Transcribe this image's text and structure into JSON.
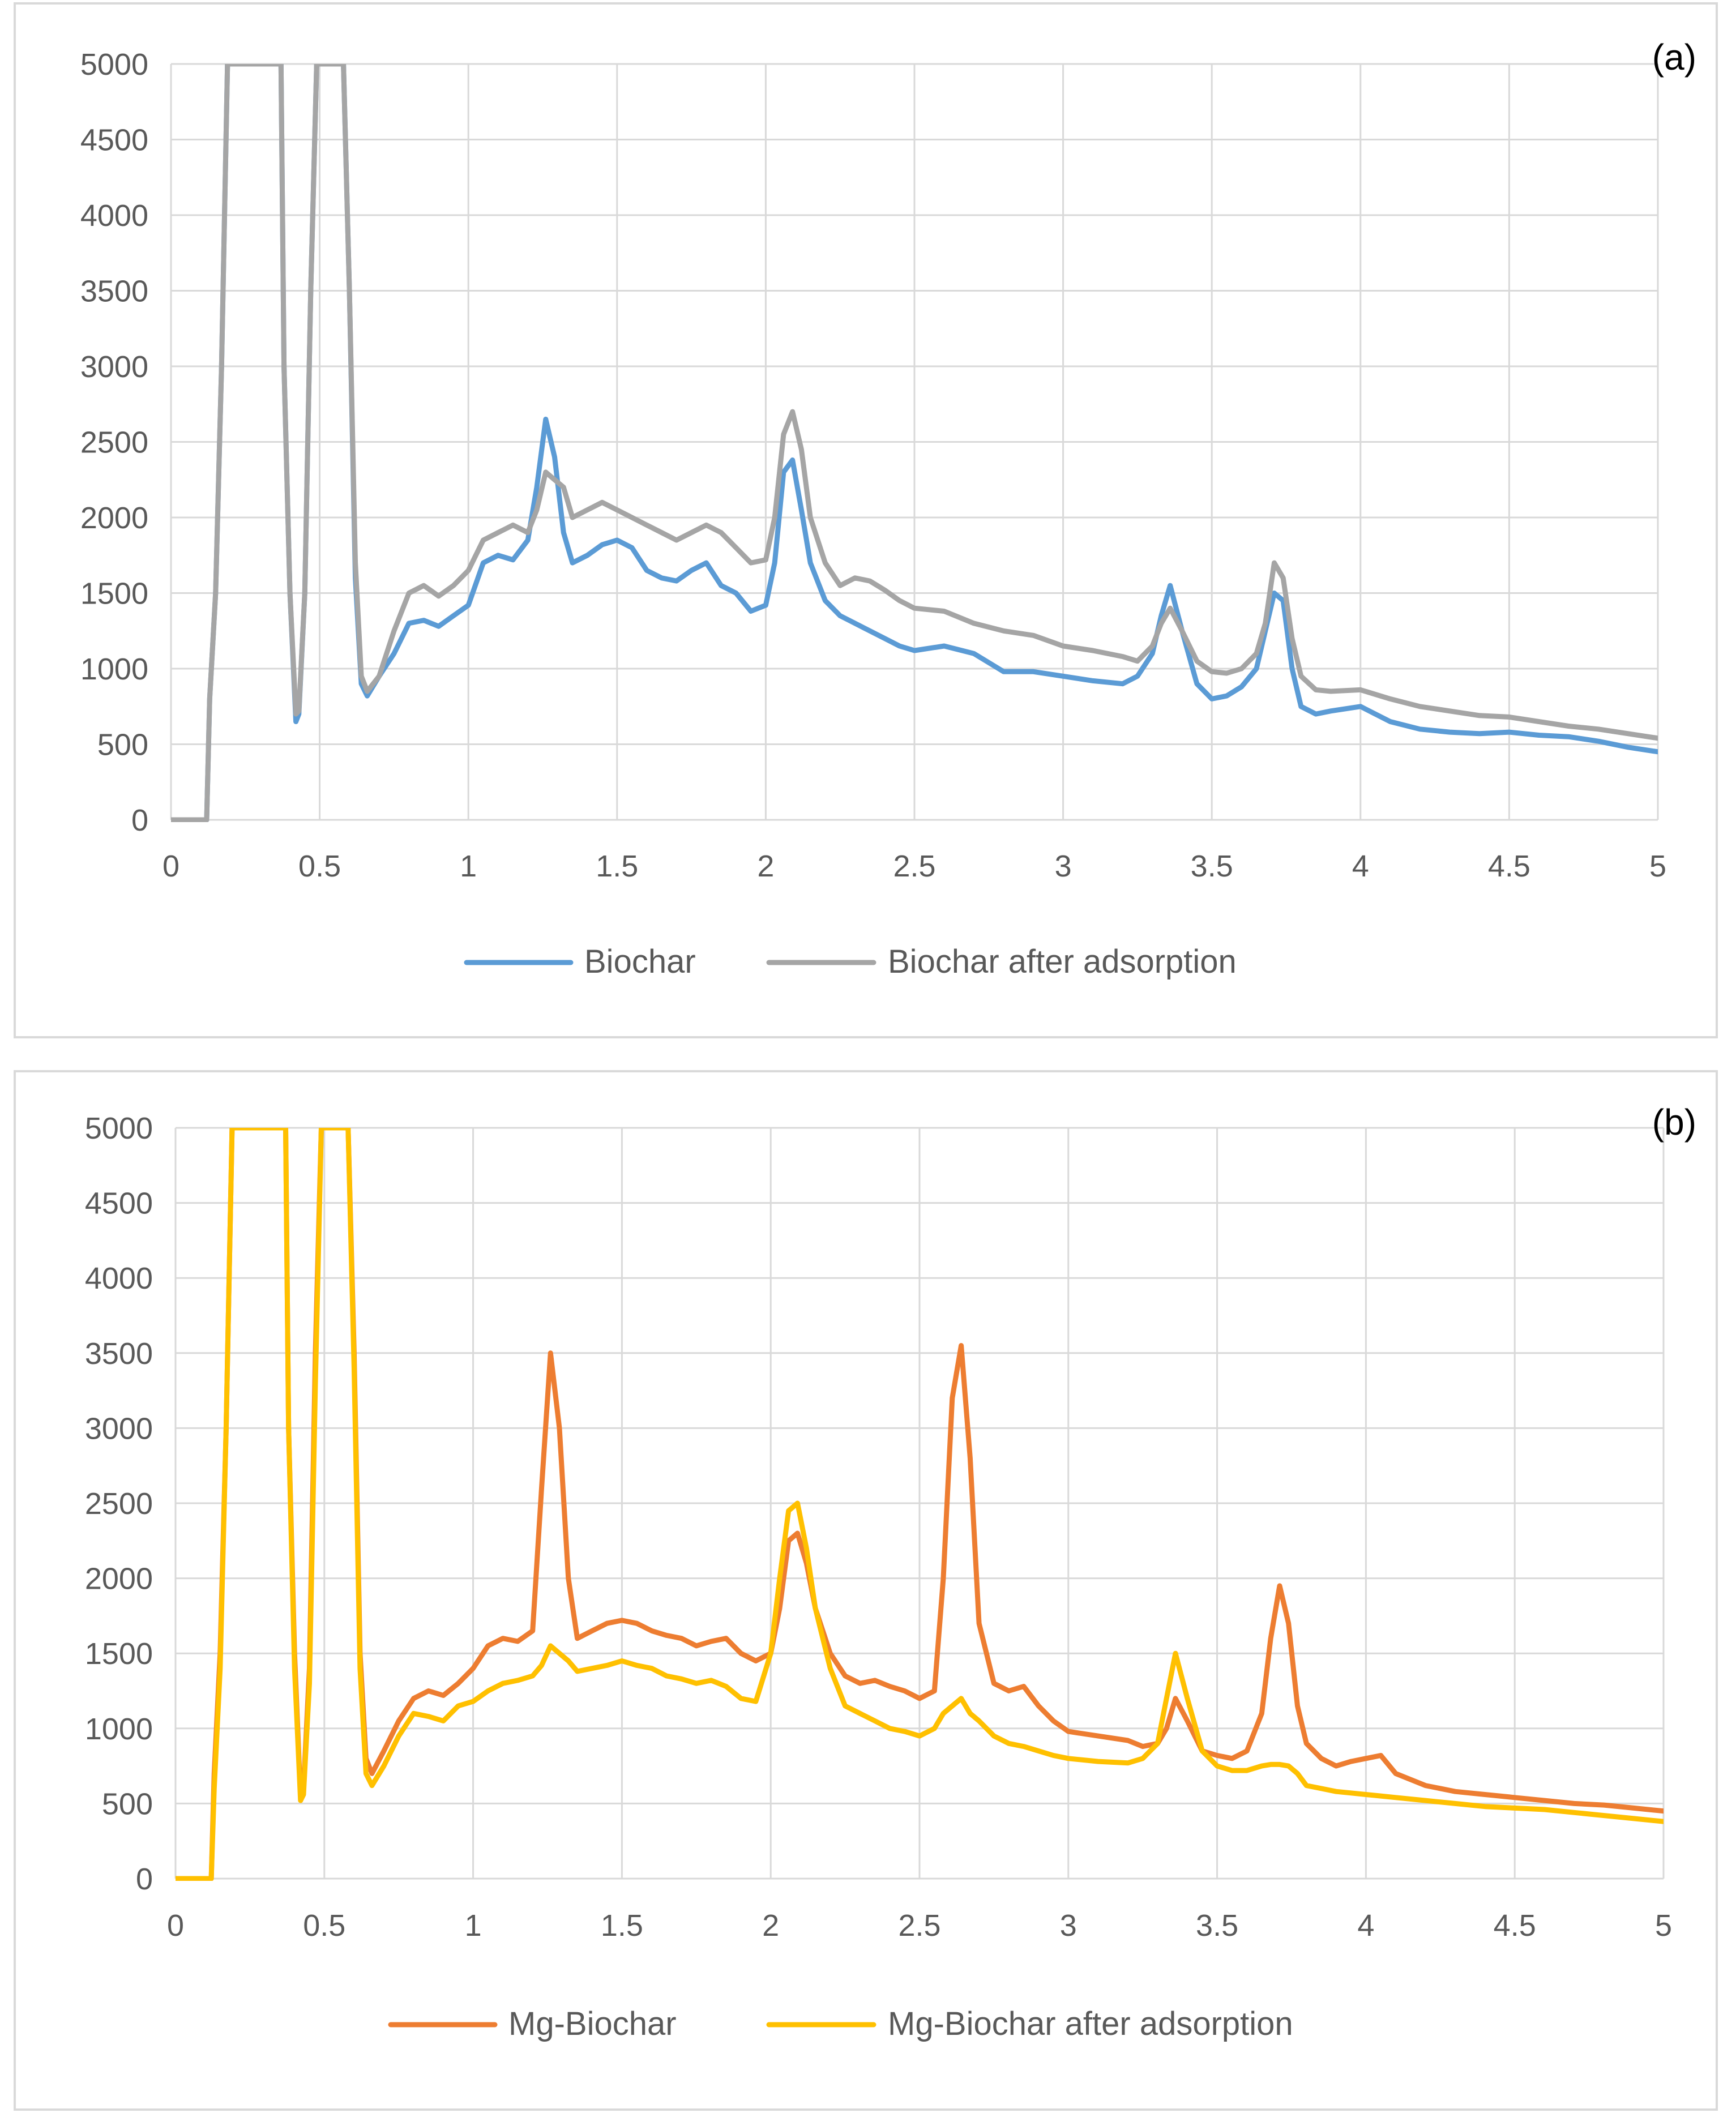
{
  "colors": {
    "biochar": "#5b9bd5",
    "biochar_after": "#a5a5a5",
    "mg_biochar": "#ed7d31",
    "mg_biochar_after": "#ffc000",
    "grid": "#d9d9d9",
    "axis_text": "#595959"
  },
  "chart_data": [
    {
      "type": "line",
      "panel_label": "(a)",
      "title": "",
      "xlabel": "",
      "ylabel": "",
      "xlim": [
        0,
        5
      ],
      "ylim": [
        0,
        5000
      ],
      "xticks": [
        "0",
        "0.5",
        "1",
        "1.5",
        "2",
        "2.5",
        "3",
        "3.5",
        "4",
        "4.5",
        "5"
      ],
      "yticks": [
        "0",
        "500",
        "1000",
        "1500",
        "2000",
        "2500",
        "3000",
        "3500",
        "4000",
        "4500",
        "5000"
      ],
      "grid": true,
      "legend_position": "bottom",
      "x": [
        0,
        0.1,
        0.12,
        0.13,
        0.15,
        0.17,
        0.19,
        0.21,
        0.3,
        0.37,
        0.38,
        0.4,
        0.42,
        0.43,
        0.45,
        0.47,
        0.49,
        0.51,
        0.56,
        0.58,
        0.6,
        0.62,
        0.64,
        0.66,
        0.7,
        0.75,
        0.8,
        0.85,
        0.9,
        0.95,
        1.0,
        1.05,
        1.1,
        1.15,
        1.2,
        1.23,
        1.26,
        1.29,
        1.32,
        1.35,
        1.4,
        1.45,
        1.5,
        1.55,
        1.6,
        1.65,
        1.7,
        1.75,
        1.8,
        1.85,
        1.9,
        1.95,
        2.0,
        2.03,
        2.06,
        2.09,
        2.12,
        2.15,
        2.2,
        2.25,
        2.3,
        2.35,
        2.4,
        2.45,
        2.5,
        2.6,
        2.7,
        2.8,
        2.9,
        3.0,
        3.1,
        3.2,
        3.25,
        3.3,
        3.33,
        3.36,
        3.4,
        3.45,
        3.5,
        3.55,
        3.6,
        3.65,
        3.68,
        3.71,
        3.74,
        3.77,
        3.8,
        3.85,
        3.9,
        4.0,
        4.1,
        4.2,
        4.3,
        4.4,
        4.5,
        4.6,
        4.7,
        4.8,
        4.9,
        5.0
      ],
      "series": [
        {
          "name": "Biochar",
          "color": "#5b9bd5",
          "values": [
            0,
            0,
            0,
            800,
            1500,
            3000,
            5000,
            5000,
            5000,
            5000,
            3000,
            1500,
            650,
            700,
            1500,
            3500,
            5000,
            5000,
            5000,
            5000,
            3500,
            1600,
            900,
            820,
            950,
            1100,
            1300,
            1320,
            1280,
            1350,
            1420,
            1700,
            1750,
            1720,
            1850,
            2200,
            2650,
            2400,
            1900,
            1700,
            1750,
            1820,
            1850,
            1800,
            1650,
            1600,
            1580,
            1650,
            1700,
            1550,
            1500,
            1380,
            1420,
            1700,
            2300,
            2380,
            2050,
            1700,
            1450,
            1350,
            1300,
            1250,
            1200,
            1150,
            1120,
            1150,
            1100,
            980,
            980,
            950,
            920,
            900,
            950,
            1100,
            1350,
            1550,
            1250,
            900,
            800,
            820,
            880,
            1000,
            1250,
            1500,
            1450,
            1000,
            750,
            700,
            720,
            750,
            650,
            600,
            580,
            570,
            580,
            560,
            550,
            520,
            480,
            450
          ]
        },
        {
          "name": "Biochar after adsorption",
          "color": "#a5a5a5",
          "values": [
            0,
            0,
            0,
            800,
            1500,
            3000,
            5000,
            5000,
            5000,
            5000,
            3000,
            1500,
            700,
            720,
            1500,
            3500,
            5000,
            5000,
            5000,
            5000,
            3500,
            1700,
            950,
            850,
            950,
            1250,
            1500,
            1550,
            1480,
            1550,
            1650,
            1850,
            1900,
            1950,
            1900,
            2050,
            2300,
            2250,
            2200,
            2000,
            2050,
            2100,
            2050,
            2000,
            1950,
            1900,
            1850,
            1900,
            1950,
            1900,
            1800,
            1700,
            1720,
            2000,
            2550,
            2700,
            2450,
            2000,
            1700,
            1550,
            1600,
            1580,
            1520,
            1450,
            1400,
            1380,
            1300,
            1250,
            1220,
            1150,
            1120,
            1080,
            1050,
            1150,
            1300,
            1400,
            1250,
            1050,
            980,
            970,
            1000,
            1100,
            1300,
            1700,
            1600,
            1200,
            950,
            860,
            850,
            860,
            800,
            750,
            720,
            690,
            680,
            650,
            620,
            600,
            570,
            540
          ]
        }
      ]
    },
    {
      "type": "line",
      "panel_label": "(b)",
      "title": "",
      "xlabel": "",
      "ylabel": "",
      "xlim": [
        0,
        5
      ],
      "ylim": [
        0,
        5000
      ],
      "xticks": [
        "0",
        "0.5",
        "1",
        "1.5",
        "2",
        "2.5",
        "3",
        "3.5",
        "4",
        "4.5",
        "5"
      ],
      "yticks": [
        "0",
        "500",
        "1000",
        "1500",
        "2000",
        "2500",
        "3000",
        "3500",
        "4000",
        "4500",
        "5000"
      ],
      "grid": true,
      "legend_position": "bottom",
      "x": [
        0,
        0.1,
        0.12,
        0.13,
        0.15,
        0.17,
        0.19,
        0.21,
        0.3,
        0.37,
        0.38,
        0.4,
        0.42,
        0.43,
        0.45,
        0.47,
        0.49,
        0.51,
        0.56,
        0.58,
        0.6,
        0.62,
        0.64,
        0.66,
        0.7,
        0.75,
        0.8,
        0.85,
        0.9,
        0.95,
        1.0,
        1.05,
        1.1,
        1.15,
        1.2,
        1.23,
        1.26,
        1.29,
        1.32,
        1.35,
        1.4,
        1.45,
        1.5,
        1.55,
        1.6,
        1.65,
        1.7,
        1.75,
        1.8,
        1.85,
        1.9,
        1.95,
        2.0,
        2.03,
        2.06,
        2.09,
        2.12,
        2.15,
        2.2,
        2.25,
        2.3,
        2.35,
        2.4,
        2.45,
        2.5,
        2.55,
        2.58,
        2.61,
        2.64,
        2.67,
        2.7,
        2.75,
        2.8,
        2.85,
        2.9,
        2.95,
        3.0,
        3.1,
        3.2,
        3.25,
        3.3,
        3.33,
        3.36,
        3.4,
        3.45,
        3.5,
        3.55,
        3.6,
        3.65,
        3.68,
        3.71,
        3.74,
        3.77,
        3.8,
        3.85,
        3.9,
        3.95,
        4.0,
        4.05,
        4.1,
        4.2,
        4.3,
        4.4,
        4.5,
        4.6,
        4.7,
        4.8,
        4.9,
        5.0
      ],
      "series": [
        {
          "name": "Mg-Biochar",
          "color": "#ed7d31",
          "values": [
            0,
            0,
            0,
            700,
            1500,
            3000,
            5000,
            5000,
            5000,
            5000,
            3000,
            1500,
            550,
            600,
            1400,
            3500,
            5000,
            5000,
            5000,
            5000,
            3500,
            1500,
            800,
            700,
            850,
            1050,
            1200,
            1250,
            1220,
            1300,
            1400,
            1550,
            1600,
            1580,
            1650,
            2600,
            3500,
            3000,
            2000,
            1600,
            1650,
            1700,
            1720,
            1700,
            1650,
            1620,
            1600,
            1550,
            1580,
            1600,
            1500,
            1450,
            1500,
            1800,
            2250,
            2300,
            2100,
            1800,
            1500,
            1350,
            1300,
            1320,
            1280,
            1250,
            1200,
            1250,
            2000,
            3200,
            3550,
            2800,
            1700,
            1300,
            1250,
            1280,
            1150,
            1050,
            980,
            950,
            920,
            880,
            900,
            1000,
            1200,
            1050,
            850,
            820,
            800,
            850,
            1100,
            1600,
            1950,
            1700,
            1150,
            900,
            800,
            750,
            780,
            800,
            820,
            700,
            620,
            580,
            560,
            540,
            520,
            500,
            490,
            470,
            450
          ]
        },
        {
          "name": "Mg-Biochar after adsorption",
          "color": "#ffc000",
          "values": [
            0,
            0,
            0,
            600,
            1400,
            3000,
            5000,
            5000,
            5000,
            5000,
            3000,
            1400,
            520,
            560,
            1300,
            3300,
            5000,
            5000,
            5000,
            5000,
            3400,
            1400,
            700,
            620,
            750,
            950,
            1100,
            1080,
            1050,
            1150,
            1180,
            1250,
            1300,
            1320,
            1350,
            1420,
            1550,
            1500,
            1450,
            1380,
            1400,
            1420,
            1450,
            1420,
            1400,
            1350,
            1330,
            1300,
            1320,
            1280,
            1200,
            1180,
            1500,
            2000,
            2450,
            2500,
            2200,
            1800,
            1400,
            1150,
            1100,
            1050,
            1000,
            980,
            950,
            1000,
            1100,
            1150,
            1200,
            1100,
            1050,
            950,
            900,
            880,
            850,
            820,
            800,
            780,
            770,
            800,
            900,
            1200,
            1500,
            1200,
            850,
            750,
            720,
            720,
            750,
            760,
            760,
            750,
            700,
            620,
            600,
            580,
            570,
            560,
            550,
            540,
            520,
            500,
            480,
            470,
            460,
            440,
            420,
            400,
            380
          ]
        }
      ]
    }
  ]
}
